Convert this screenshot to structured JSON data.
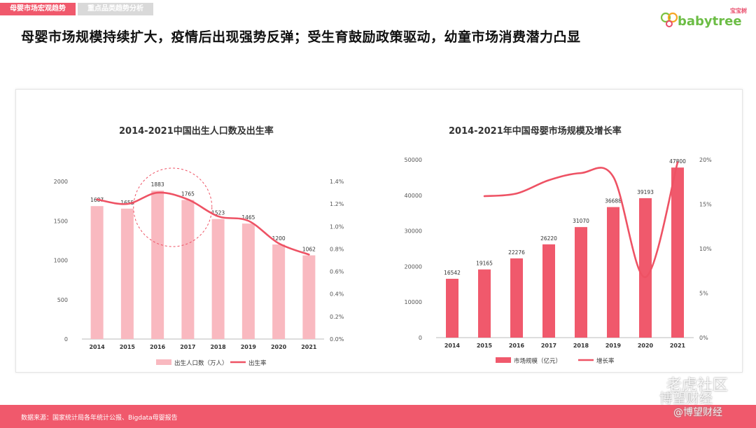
{
  "tabs": [
    {
      "label": "母婴市场宏观趋势"
    },
    {
      "label": "重点品类趋势分析"
    }
  ],
  "logo": {
    "brand": "babytree",
    "sub": "宝宝树"
  },
  "headline": "母婴市场规模持续扩大，疫情后出现强势反弹；受生育鼓励政策驱动，幼童市场消费潜力凸显",
  "footer": {
    "source": "数据来源：国家统计局各年统计公报、Bigdata母婴报告"
  },
  "watermark": {
    "line1": "老虎社区",
    "line2": "博望财经",
    "line3": "@博望财经"
  },
  "colors": {
    "bar_light": "#f9b9c0",
    "bar_dark": "#f0596c",
    "line": "#ee5264",
    "accent": "#f0596c"
  },
  "chart_data": [
    {
      "type": "bar",
      "title": "2014-2021中国出生人口数及出生率",
      "categories": [
        "2014",
        "2015",
        "2016",
        "2017",
        "2018",
        "2019",
        "2020",
        "2021"
      ],
      "series": [
        {
          "name": "出生人口数（万人）",
          "type": "bar",
          "axis": "left",
          "values": [
            1687,
            1655,
            1883,
            1765,
            1523,
            1465,
            1200,
            1062
          ]
        },
        {
          "name": "出生率",
          "type": "line",
          "axis": "right",
          "values": [
            1.24,
            1.2,
            1.3,
            1.24,
            1.09,
            1.05,
            0.85,
            0.75
          ]
        }
      ],
      "ylim": [
        0,
        2000
      ],
      "y_ticks": [
        "0",
        "500",
        "1000",
        "1500",
        "2000"
      ],
      "y2lim": [
        0,
        1.4
      ],
      "y2_ticks": [
        "0.0%",
        "0.2%",
        "0.4%",
        "0.6%",
        "0.8%",
        "1.0%",
        "1.2%",
        "1.4%"
      ],
      "annotation": "dashed circle around 2016-2017",
      "legend": "bottom",
      "grid": false
    },
    {
      "type": "bar",
      "title": "2014-2021年中国母婴市场规模及增长率",
      "categories": [
        "2014",
        "2015",
        "2016",
        "2017",
        "2018",
        "2019",
        "2020",
        "2021"
      ],
      "series": [
        {
          "name": "市场规模（亿元）",
          "type": "bar",
          "axis": "left",
          "values": [
            16542,
            19165,
            22276,
            26220,
            31070,
            36688,
            39193,
            47800
          ]
        },
        {
          "name": "增长率",
          "type": "line",
          "axis": "right",
          "values": [
            null,
            15.9,
            16.2,
            17.7,
            18.5,
            18.1,
            6.8,
            19.7
          ]
        }
      ],
      "ylim": [
        0,
        50000
      ],
      "y_ticks": [
        "0",
        "10000",
        "20000",
        "30000",
        "40000",
        "50000"
      ],
      "y2lim": [
        0,
        20
      ],
      "y2_ticks": [
        "0%",
        "5%",
        "10%",
        "15%",
        "20%"
      ],
      "legend": "bottom",
      "grid": false
    }
  ]
}
